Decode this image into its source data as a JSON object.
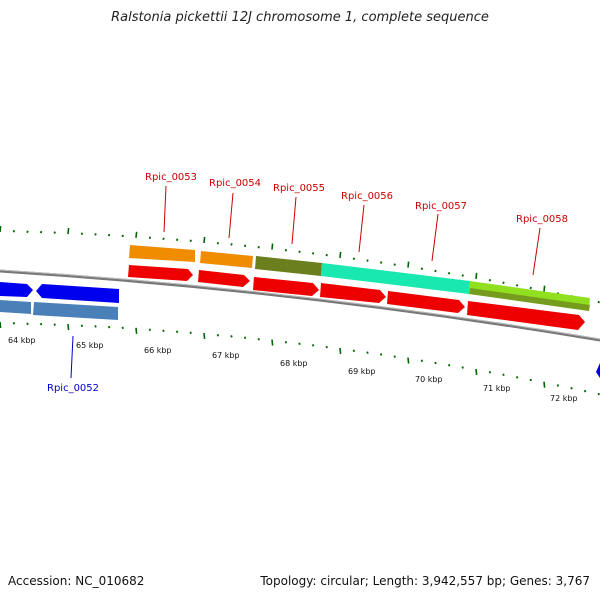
{
  "title": "Ralstonia pickettii 12J chromosome 1, complete sequence",
  "footer": {
    "accession": "Accession: NC_010682",
    "topology": "Topology: circular; Length: 3,942,557 bp; Genes: 3,767"
  },
  "colors": {
    "forward_label": "#cc0000",
    "reverse_label": "#0000cc",
    "cds": "#ee0000",
    "backbone": "#888888",
    "ticks": "#006600"
  },
  "scale_labels": [
    "64 kbp",
    "65 kbp",
    "66 kbp",
    "67 kbp",
    "68 kbp",
    "69 kbp",
    "70 kbp",
    "71 kbp",
    "72 kbp"
  ],
  "gene_labels": [
    {
      "text": "Rpic_0052",
      "strand": "reverse"
    },
    {
      "text": "Rpic_0053",
      "strand": "forward"
    },
    {
      "text": "Rpic_0054",
      "strand": "forward"
    },
    {
      "text": "Rpic_0055",
      "strand": "forward"
    },
    {
      "text": "Rpic_0056",
      "strand": "forward"
    },
    {
      "text": "Rpic_0057",
      "strand": "forward"
    },
    {
      "text": "Rpic_0058",
      "strand": "forward"
    }
  ]
}
